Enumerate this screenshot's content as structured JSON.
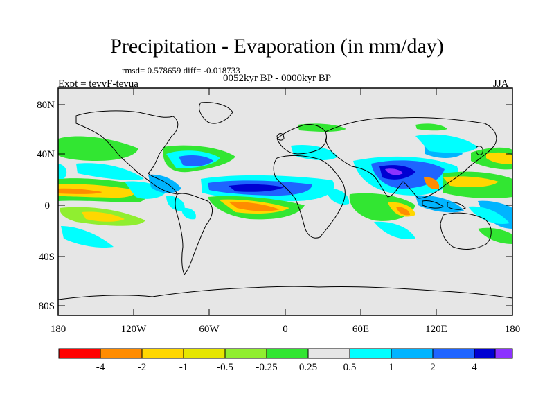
{
  "title": "Precipitation - Evaporation (in mm/day)",
  "stats": "rmsd= 0.578659 diff= -0.018733",
  "period": "0052kyr BP - 0000kyr BP",
  "experiment": "Expt = tevvF-tevua",
  "season": "JJA",
  "axes": {
    "lat_ticks": [
      "80N",
      "40N",
      "0",
      "40S",
      "80S"
    ],
    "lon_ticks": [
      "180",
      "120W",
      "60W",
      "0",
      "60E",
      "120E",
      "180"
    ]
  },
  "colorbar": {
    "colors": [
      "#ff0000",
      "#ff8c00",
      "#ffd700",
      "#e6e600",
      "#90ee30",
      "#32e632",
      "#e6e6e6",
      "#00ffff",
      "#00b4ff",
      "#1e64ff",
      "#0000d2",
      "#8c32ff"
    ],
    "labels": [
      "-4",
      "-2",
      "-1",
      "-0.5",
      "-0.25",
      "0.25",
      "0.5",
      "1",
      "2",
      "4"
    ]
  },
  "palette": {
    "ocean": "#e6e6e6",
    "coast": "#000000"
  }
}
